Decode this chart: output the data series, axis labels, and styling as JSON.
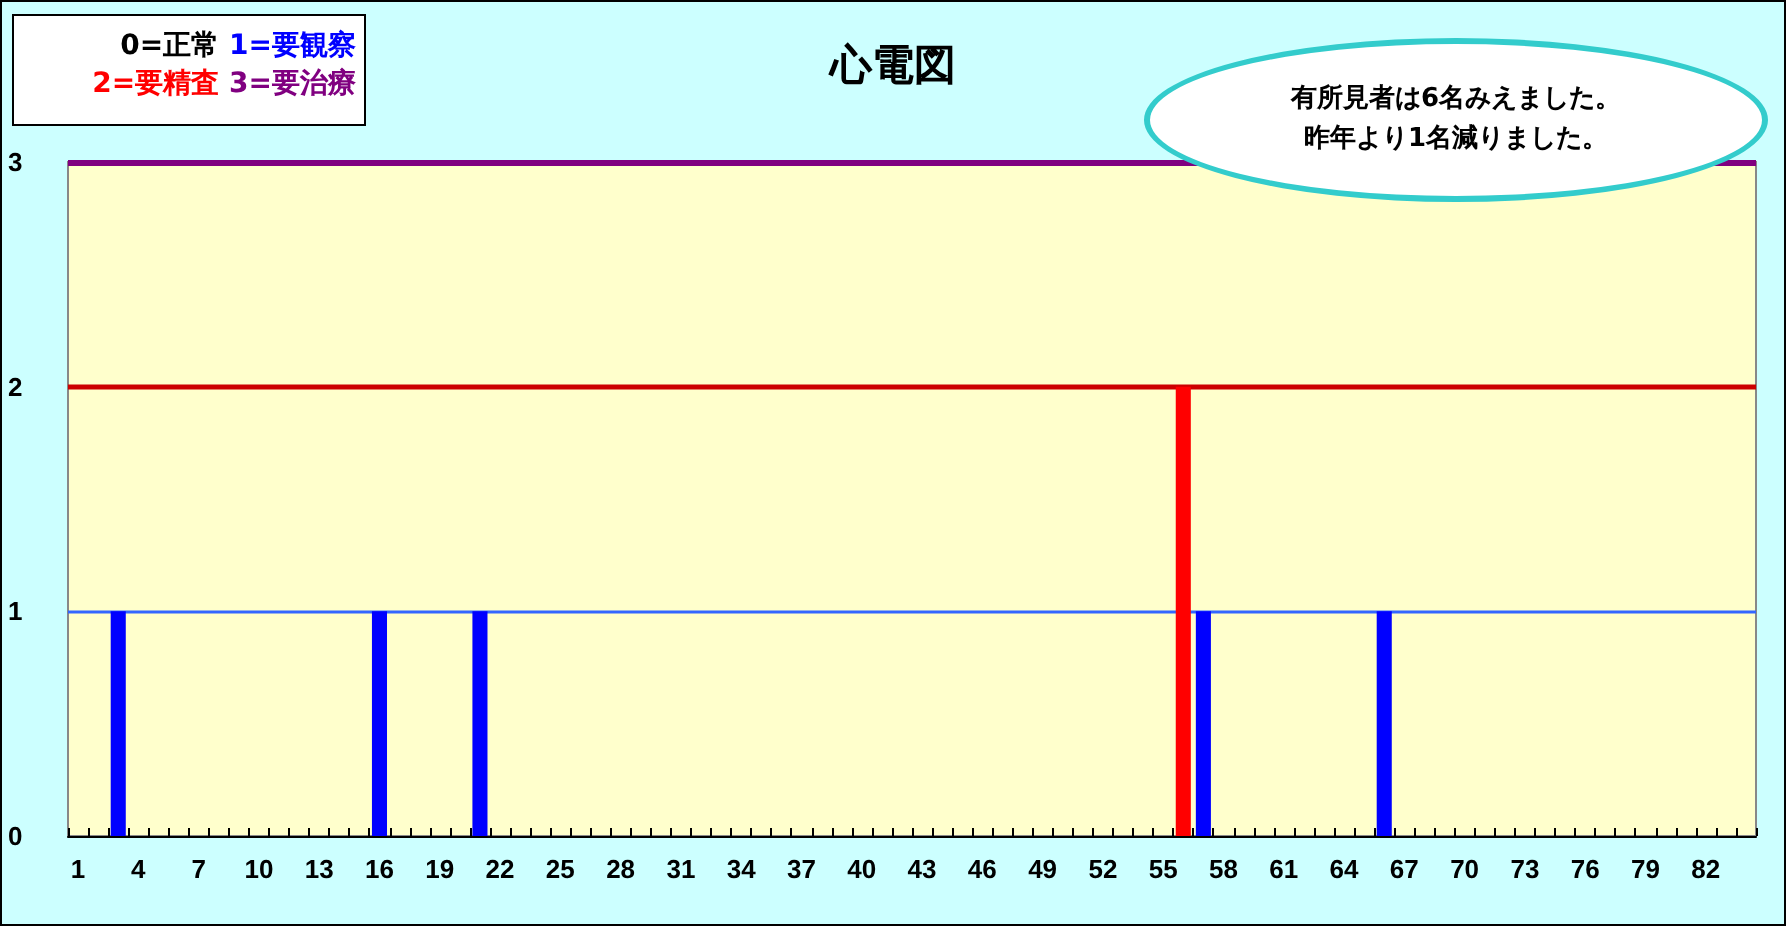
{
  "chart_data": {
    "type": "bar",
    "title": "心電図",
    "annotations": [
      "0=正常",
      "1=要観察",
      "2=要精査",
      "3=要治療",
      "有所見者は6名みえました。",
      "昨年より1名減りました。"
    ],
    "categories": [
      "1",
      null,
      null,
      "4",
      null,
      null,
      "7",
      null,
      null,
      "10",
      null,
      null,
      "13",
      null,
      null,
      "16",
      null,
      null,
      "19",
      null,
      null,
      "22",
      null,
      null,
      "25",
      null,
      null,
      "28",
      null,
      null,
      "31",
      null,
      null,
      "34",
      null,
      null,
      "37",
      null,
      null,
      "40",
      null,
      null,
      "43",
      null,
      null,
      "46",
      null,
      null,
      "49",
      null,
      null,
      "52",
      null,
      null,
      "55",
      null,
      null,
      "58",
      null,
      null,
      "61",
      null,
      null,
      "64",
      null,
      null,
      "67",
      null,
      null,
      "70",
      null,
      null,
      "73",
      null,
      null,
      "76",
      null,
      null,
      "79",
      null,
      null,
      "82",
      null,
      null
    ],
    "values": [
      0,
      0,
      1,
      0,
      0,
      0,
      0,
      0,
      0,
      0,
      0,
      0,
      0,
      0,
      0,
      1,
      0,
      0,
      0,
      0,
      1,
      0,
      0,
      0,
      0,
      0,
      0,
      0,
      0,
      0,
      0,
      0,
      0,
      0,
      0,
      0,
      0,
      0,
      0,
      0,
      0,
      0,
      0,
      0,
      0,
      0,
      0,
      0,
      0,
      0,
      0,
      0,
      0,
      0,
      0,
      2,
      1,
      0,
      0,
      0,
      0,
      0,
      0,
      0,
      0,
      1,
      0,
      0,
      0,
      0,
      0,
      0,
      0,
      0,
      0,
      0,
      0,
      0,
      0,
      0,
      0,
      0,
      0,
      0
    ],
    "colors": [
      "#0000ff",
      "#0000ff",
      "#0000ff",
      "#0000ff",
      "#0000ff",
      "#0000ff",
      "#0000ff",
      "#0000ff",
      "#0000ff",
      "#0000ff",
      "#0000ff",
      "#0000ff",
      "#0000ff",
      "#0000ff",
      "#0000ff",
      "#0000ff",
      "#0000ff",
      "#0000ff",
      "#0000ff",
      "#0000ff",
      "#0000ff",
      "#0000ff",
      "#0000ff",
      "#0000ff",
      "#0000ff",
      "#0000ff",
      "#0000ff",
      "#0000ff",
      "#0000ff",
      "#0000ff",
      "#0000ff",
      "#0000ff",
      "#0000ff",
      "#0000ff",
      "#0000ff",
      "#0000ff",
      "#0000ff",
      "#0000ff",
      "#0000ff",
      "#0000ff",
      "#0000ff",
      "#0000ff",
      "#0000ff",
      "#0000ff",
      "#0000ff",
      "#0000ff",
      "#0000ff",
      "#0000ff",
      "#0000ff",
      "#0000ff",
      "#0000ff",
      "#0000ff",
      "#0000ff",
      "#0000ff",
      "#0000ff",
      "#ff0000",
      "#0000ff",
      "#0000ff",
      "#0000ff",
      "#0000ff",
      "#0000ff",
      "#0000ff",
      "#0000ff",
      "#0000ff",
      "#0000ff",
      "#0000ff",
      "#0000ff",
      "#0000ff",
      "#0000ff",
      "#0000ff",
      "#0000ff",
      "#0000ff",
      "#0000ff",
      "#0000ff",
      "#0000ff",
      "#0000ff",
      "#0000ff",
      "#0000ff",
      "#0000ff",
      "#0000ff",
      "#0000ff",
      "#0000ff",
      "#0000ff",
      "#0000ff"
    ],
    "ylim": [
      0,
      3
    ],
    "yticks": [
      0,
      1,
      2,
      3
    ],
    "ref_lines": [
      {
        "axis": "y",
        "value": 1,
        "color": "#3366ff"
      },
      {
        "axis": "y",
        "value": 2,
        "color": "#cc0000"
      },
      {
        "axis": "y",
        "value": 3,
        "color": "#800080"
      }
    ],
    "grid": false
  }
}
